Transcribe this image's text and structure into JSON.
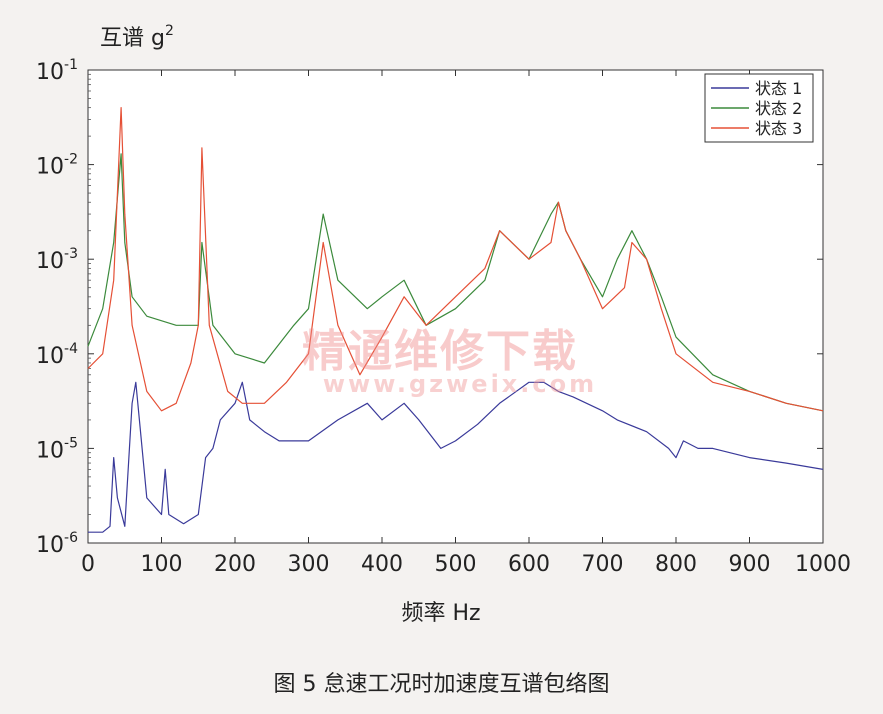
{
  "chart_data": {
    "type": "line",
    "ylabel": "互谱  g",
    "ylabel_sup": "2",
    "xlabel": "频率 Hz",
    "yscale": "log",
    "xlim": [
      0,
      1000
    ],
    "ylim": [
      1e-06,
      0.1
    ],
    "xticks": [
      "0",
      "100",
      "200",
      "300",
      "400",
      "500",
      "600",
      "700",
      "800",
      "900",
      "1000"
    ],
    "yticks": [
      {
        "base": "10",
        "exp": "-1"
      },
      {
        "base": "10",
        "exp": "-2"
      },
      {
        "base": "10",
        "exp": "-3"
      },
      {
        "base": "10",
        "exp": "-4"
      },
      {
        "base": "10",
        "exp": "-5"
      },
      {
        "base": "10",
        "exp": "-6"
      }
    ],
    "legend_position": "top-right",
    "series": [
      {
        "name": "状态 1",
        "color": "#3a3a9a",
        "x": [
          0,
          20,
          30,
          35,
          40,
          50,
          60,
          65,
          70,
          80,
          100,
          105,
          110,
          130,
          150,
          160,
          170,
          180,
          200,
          210,
          220,
          240,
          260,
          300,
          340,
          380,
          400,
          430,
          450,
          480,
          500,
          530,
          560,
          600,
          620,
          640,
          660,
          700,
          720,
          760,
          790,
          800,
          810,
          830,
          850,
          900,
          950,
          1000
        ],
        "y": [
          1.3e-06,
          1.3e-06,
          1.5e-06,
          8e-06,
          3e-06,
          1.5e-06,
          3e-05,
          5e-05,
          2e-05,
          3e-06,
          2e-06,
          6e-06,
          2e-06,
          1.6e-06,
          2e-06,
          8e-06,
          1e-05,
          2e-05,
          3e-05,
          5e-05,
          2e-05,
          1.5e-05,
          1.2e-05,
          1.2e-05,
          2e-05,
          3e-05,
          2e-05,
          3e-05,
          2e-05,
          1e-05,
          1.2e-05,
          1.8e-05,
          3e-05,
          5e-05,
          5e-05,
          4e-05,
          3.5e-05,
          2.5e-05,
          2e-05,
          1.5e-05,
          1e-05,
          8e-06,
          1.2e-05,
          1e-05,
          1e-05,
          8e-06,
          7e-06,
          6e-06
        ]
      },
      {
        "name": "状态 2",
        "color": "#3c8a3c",
        "x": [
          0,
          20,
          35,
          45,
          50,
          60,
          80,
          120,
          150,
          155,
          170,
          200,
          240,
          280,
          300,
          320,
          340,
          380,
          400,
          430,
          460,
          500,
          540,
          560,
          600,
          630,
          640,
          650,
          670,
          700,
          720,
          740,
          760,
          780,
          800,
          850,
          900,
          950,
          1000
        ],
        "y": [
          0.00012,
          0.0003,
          0.0015,
          0.013,
          0.0015,
          0.0004,
          0.00025,
          0.0002,
          0.0002,
          0.0015,
          0.0002,
          0.0001,
          8e-05,
          0.0002,
          0.0003,
          0.003,
          0.0006,
          0.0003,
          0.0004,
          0.0006,
          0.0002,
          0.0003,
          0.0006,
          0.002,
          0.001,
          0.003,
          0.004,
          0.002,
          0.001,
          0.0004,
          0.001,
          0.002,
          0.001,
          0.0004,
          0.00015,
          6e-05,
          4e-05,
          3e-05,
          2.5e-05
        ]
      },
      {
        "name": "状态 3",
        "color": "#e55036",
        "x": [
          0,
          20,
          35,
          45,
          50,
          60,
          80,
          100,
          120,
          140,
          150,
          155,
          165,
          190,
          210,
          240,
          270,
          300,
          320,
          340,
          370,
          400,
          430,
          460,
          500,
          540,
          560,
          600,
          630,
          640,
          650,
          670,
          700,
          730,
          740,
          760,
          780,
          800,
          850,
          900,
          950,
          1000
        ],
        "y": [
          7e-05,
          0.0001,
          0.0006,
          0.04,
          0.003,
          0.0002,
          4e-05,
          2.5e-05,
          3e-05,
          8e-05,
          0.0002,
          0.015,
          0.0002,
          4e-05,
          3e-05,
          3e-05,
          5e-05,
          0.0001,
          0.0015,
          0.0002,
          6e-05,
          0.00015,
          0.0004,
          0.0002,
          0.0004,
          0.0008,
          0.002,
          0.001,
          0.0015,
          0.004,
          0.002,
          0.001,
          0.0003,
          0.0005,
          0.0015,
          0.001,
          0.0003,
          0.0001,
          5e-05,
          4e-05,
          3e-05,
          2.5e-05
        ]
      }
    ]
  },
  "caption": "图 5  怠速工况时加速度互谱包络图",
  "watermark": {
    "text": "精通维修下载",
    "url": "www.gzweix.com"
  }
}
